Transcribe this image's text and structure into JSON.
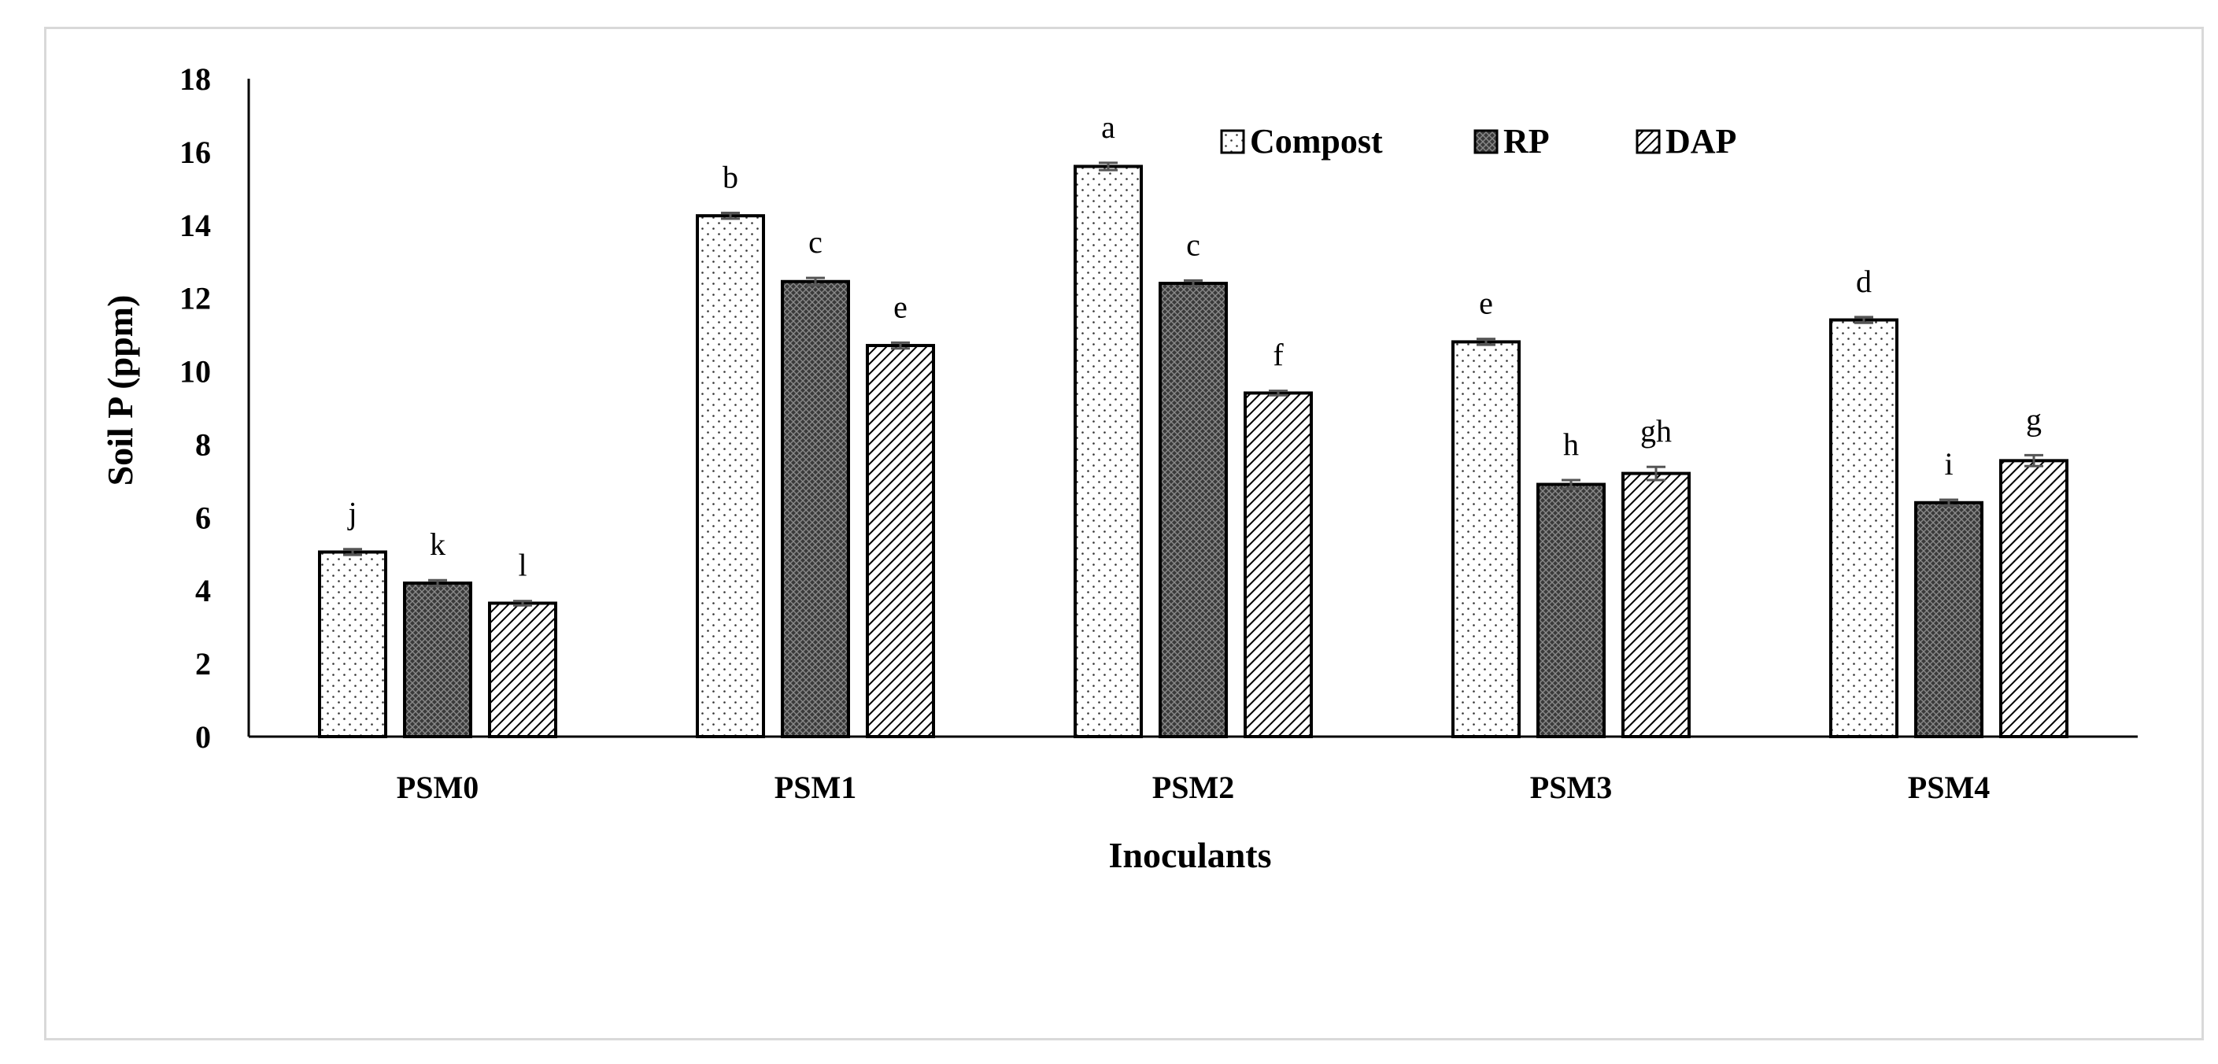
{
  "chart_data": {
    "type": "bar",
    "title": "",
    "xlabel": "Inoculants",
    "ylabel": "Soil P (ppm)",
    "ylim": [
      0,
      18
    ],
    "yticks": [
      0,
      2,
      4,
      6,
      8,
      10,
      12,
      14,
      16,
      18
    ],
    "categories": [
      "PSM0",
      "PSM1",
      "PSM2",
      "PSM3",
      "PSM4"
    ],
    "series": [
      {
        "name": "Compost",
        "pattern": "dots",
        "values": [
          5.05,
          14.25,
          15.6,
          10.8,
          11.4
        ],
        "errors": [
          0.08,
          0.08,
          0.1,
          0.08,
          0.08
        ],
        "labels": [
          "j",
          "b",
          "a",
          "e",
          "d"
        ]
      },
      {
        "name": "RP",
        "pattern": "crosshatch",
        "values": [
          4.2,
          12.45,
          12.4,
          6.9,
          6.4
        ],
        "errors": [
          0.08,
          0.1,
          0.08,
          0.12,
          0.08
        ],
        "labels": [
          "k",
          "c",
          "c",
          "h",
          "i"
        ]
      },
      {
        "name": "DAP",
        "pattern": "diagonal",
        "values": [
          3.65,
          10.7,
          9.4,
          7.2,
          7.55
        ],
        "errors": [
          0.06,
          0.08,
          0.06,
          0.18,
          0.15
        ],
        "labels": [
          "l",
          "e",
          "f",
          "gh",
          "g"
        ]
      }
    ],
    "legend_position": "top-center",
    "grid": false
  }
}
